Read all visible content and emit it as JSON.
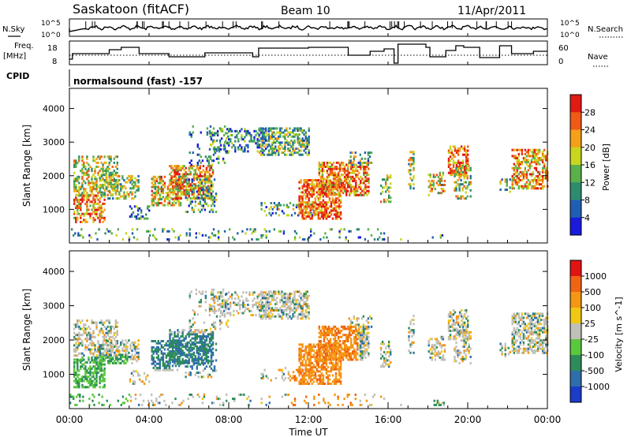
{
  "header": {
    "station": "Saskatoon (fitACF)",
    "beam": "Beam 10",
    "date": "11/Apr/2011"
  },
  "panel_labels": {
    "nsky": "N.Sky",
    "nsearch": "N.Search",
    "freq_line1": "Freq.",
    "freq_line2": "[MHz]",
    "nave": "Nave",
    "cpid": "CPID",
    "cpid_value": "normalsound (fast) -157"
  },
  "noise_axis": {
    "left_top": "10^5",
    "left_bottom": "10^0",
    "right_top": "10^5",
    "right_bottom": "10^0"
  },
  "freq_axis": {
    "left_top": "18",
    "left_bottom": "8",
    "right_top": "60",
    "right_bottom": "0"
  },
  "chart_data": [
    {
      "type": "heatmap",
      "quantity": "Power",
      "xlabel": "Time UT",
      "ylabel": "Slant Range [km]",
      "xlim": [
        0,
        24
      ],
      "ylim": [
        0,
        4600
      ],
      "x_ticks": [
        "00:00",
        "04:00",
        "08:00",
        "12:00",
        "16:00",
        "20:00",
        "00:00"
      ],
      "y_ticks": [
        "1000",
        "2000",
        "3000",
        "4000"
      ],
      "colorbar_label": "Power [dB]",
      "colorbar_ticks": [
        "4",
        "8",
        "12",
        "16",
        "20",
        "24",
        "28"
      ],
      "colorbar_colors": [
        "#1a1adc",
        "#1e5fb4",
        "#2e8c6e",
        "#5ab04a",
        "#c8d61e",
        "#f5a019",
        "#f05a14",
        "#e11a14"
      ]
    },
    {
      "type": "heatmap",
      "quantity": "Velocity",
      "xlabel": "Time UT",
      "ylabel": "Slant Range [km]",
      "xlim": [
        0,
        24
      ],
      "ylim": [
        0,
        4600
      ],
      "x_ticks": [
        "00:00",
        "04:00",
        "08:00",
        "12:00",
        "16:00",
        "20:00",
        "00:00"
      ],
      "y_ticks": [
        "1000",
        "2000",
        "3000",
        "4000"
      ],
      "colorbar_label": "Velocity [m s^-1]",
      "colorbar_ticks": [
        "1000",
        "500",
        "100",
        "25",
        "-25",
        "-100",
        "-500",
        "-1000"
      ],
      "colorbar_colors": [
        "#1a3cc8",
        "#2e6eaa",
        "#2e8c5a",
        "#5ac83c",
        "#c0c0b8",
        "#f0c814",
        "#f59614",
        "#f06414",
        "#e11414"
      ]
    }
  ]
}
